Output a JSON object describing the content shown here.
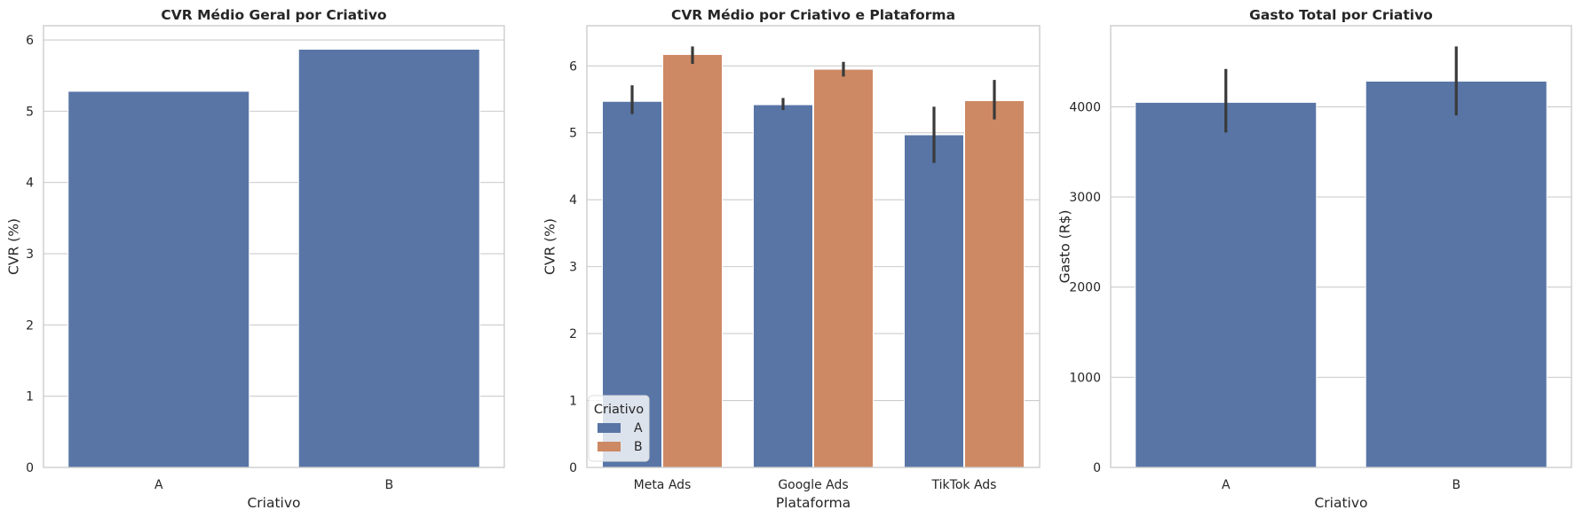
{
  "chart_data": [
    {
      "type": "bar",
      "title": "CVR Médio Geral por Criativo",
      "xlabel": "Criativo",
      "ylabel": "CVR (%)",
      "categories": [
        "A",
        "B"
      ],
      "series": [
        {
          "values": [
            5.28,
            5.87
          ],
          "color": "#5875a6"
        }
      ],
      "ylim": [
        0,
        6.2
      ],
      "yticks": [
        0,
        1,
        2,
        3,
        4,
        5,
        6
      ],
      "grid": true
    },
    {
      "type": "bar",
      "title": "CVR Médio por Criativo e Plataforma",
      "xlabel": "Plataforma",
      "ylabel": "CVR (%)",
      "categories": [
        "Meta Ads",
        "Google Ads",
        "TikTok Ads"
      ],
      "series": [
        {
          "name": "A",
          "values": [
            5.47,
            5.42,
            4.97
          ],
          "error_low": [
            5.28,
            5.34,
            4.55
          ],
          "error_high": [
            5.71,
            5.52,
            5.39
          ],
          "color": "#5875a6"
        },
        {
          "name": "B",
          "values": [
            6.17,
            5.95,
            5.48
          ],
          "error_low": [
            6.03,
            5.84,
            5.2
          ],
          "error_high": [
            6.29,
            6.06,
            5.79
          ],
          "color": "#cd8963"
        }
      ],
      "ylim": [
        0,
        6.6
      ],
      "yticks": [
        0,
        1,
        2,
        3,
        4,
        5,
        6
      ],
      "legend": {
        "title": "Criativo",
        "placement": "lower-left"
      },
      "grid": true
    },
    {
      "type": "bar",
      "title": "Gasto Total por Criativo",
      "xlabel": "Criativo",
      "ylabel": "Gasto (R$)",
      "categories": [
        "A",
        "B"
      ],
      "series": [
        {
          "values": [
            4050,
            4285
          ],
          "error_low": [
            3715,
            3905
          ],
          "error_high": [
            4420,
            4670
          ],
          "color": "#5875a6"
        }
      ],
      "ylim": [
        0,
        4900
      ],
      "yticks": [
        0,
        1000,
        2000,
        3000,
        4000
      ],
      "grid": true
    }
  ]
}
